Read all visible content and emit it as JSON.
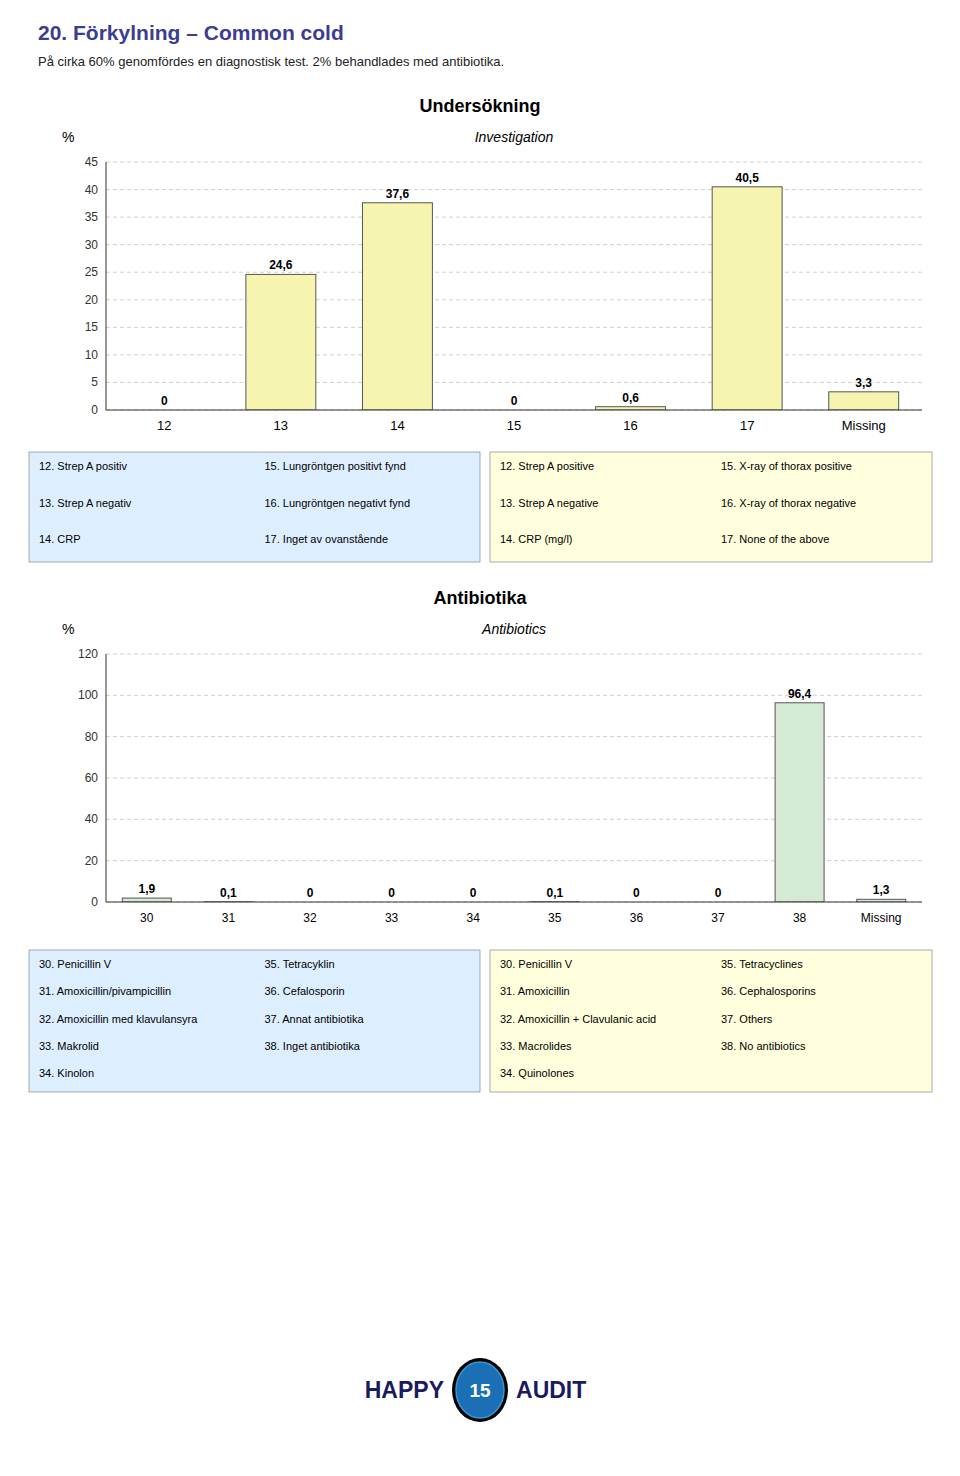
{
  "title": "20. Förkylning – Common cold",
  "subtitle": "På cirka 60% genomfördes en diagnostisk test. 2% behandlades med antibiotika.",
  "annotations": [
    "HAPPY",
    "15",
    "A",
    "UDIT"
  ],
  "chart_data": [
    {
      "type": "bar",
      "title": "Undersökning",
      "subtitle": "Investigation",
      "ylabel": "%",
      "categories": [
        "12",
        "13",
        "14",
        "15",
        "16",
        "17",
        "Missing"
      ],
      "values": [
        0,
        24.6,
        37.6,
        0,
        0.6,
        40.5,
        3.3
      ],
      "value_labels": [
        "0",
        "24,6",
        "37,6",
        "0",
        "0,6",
        "40,5",
        "3,3"
      ],
      "color": "#f5f5b0",
      "ylim": [
        0,
        45
      ],
      "yticks": [
        0,
        5,
        10,
        15,
        20,
        25,
        30,
        35,
        40,
        45
      ],
      "grid": true,
      "data_labels": true,
      "annotations": [
        {
          "color": "#ddeeff",
          "columns": [
            [
              "12. Strep A positiv",
              "13. Strep A negativ",
              "14. CRP"
            ],
            [
              "15. Lungröntgen positivt fynd",
              "16. Lungröntgen negativt fynd",
              "17. Inget av ovanstående"
            ]
          ]
        },
        {
          "color": "#ffffdd",
          "columns": [
            [
              "12. Strep A positive",
              "13. Strep A negative",
              "14. CRP (mg/l)"
            ],
            [
              "15. X-ray of thorax positive",
              "16. X-ray of thorax negative",
              "17. None of the above"
            ]
          ]
        }
      ]
    },
    {
      "type": "bar",
      "title": "Antibiotika",
      "subtitle": "Antibiotics",
      "ylabel": "%",
      "categories": [
        "30",
        "31",
        "32",
        "33",
        "34",
        "35",
        "36",
        "37",
        "38",
        "Missing"
      ],
      "values": [
        1.9,
        0.1,
        0,
        0,
        0,
        0.1,
        0,
        0,
        96.4,
        1.3
      ],
      "value_labels": [
        "1,9",
        "0,1",
        "0",
        "0",
        "0",
        "0,1",
        "0",
        "0",
        "96,4",
        "1,3"
      ],
      "color": "#d5ead5",
      "ylim": [
        0,
        120
      ],
      "yticks": [
        0,
        20,
        40,
        60,
        80,
        100,
        120
      ],
      "grid": true,
      "data_labels": true,
      "annotations": [
        {
          "color": "#ddeeff",
          "columns": [
            [
              "30. Penicillin V",
              "31. Amoxicillin/pivampicillin",
              "32. Amoxicillin med klavulansyra",
              "33. Makrolid",
              "34. Kinolon"
            ],
            [
              "35. Tetracyklin",
              "36. Cefalosporin",
              "37. Annat antibiotika",
              "38. Inget antibiotika"
            ]
          ]
        },
        {
          "color": "#ffffdd",
          "columns": [
            [
              "30. Penicillin V",
              "31. Amoxicillin",
              "32. Amoxicillin + Clavulanic acid",
              "33. Macrolides",
              "34. Quinolones"
            ],
            [
              "35. Tetracyclines",
              "36. Cephalosporins",
              "37. Others",
              "38. No antibiotics"
            ]
          ]
        }
      ]
    }
  ]
}
